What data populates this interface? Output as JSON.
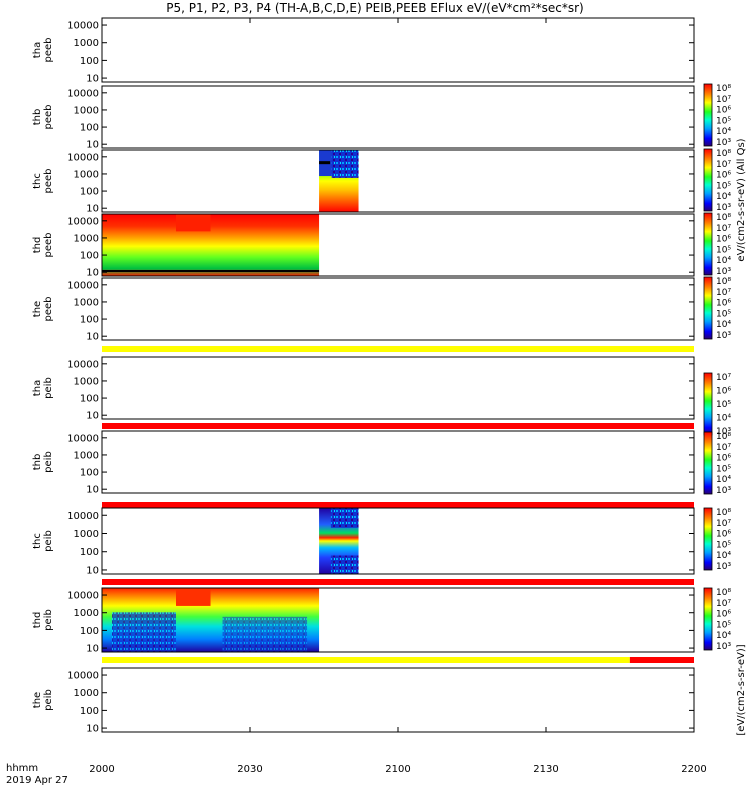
{
  "title": "P5, P1, P2, P3, P4 (TH-A,B,C,D,E) PEIB,PEEB EFlux eV/(eV*cm²*sec*sr)",
  "time_label": "hhmm",
  "date_label": "2019 Apr 27",
  "x_ticks": [
    "2000",
    "2030",
    "2100",
    "2130",
    "2200"
  ],
  "cbar_label_top": "eV/(cm2-s-sr-eV) (All Qs)",
  "cbar_label_bottom": "[eV/(cm2-s-sr-eV)]",
  "chart_data": {
    "type": "heatmap",
    "x_range": [
      "2000",
      "2200"
    ],
    "y_scale": "log",
    "y_ticks": [
      "10",
      "100",
      "1000",
      "10000"
    ],
    "colorscale": "rainbow",
    "panels": [
      {
        "probe": "tha",
        "product": "peeb",
        "data_intervals": []
      },
      {
        "probe": "thb",
        "product": "peeb",
        "data_intervals": []
      },
      {
        "probe": "thc",
        "product": "peeb",
        "data_intervals": [
          [
            "2044",
            "2052"
          ]
        ]
      },
      {
        "probe": "thd",
        "product": "peeb",
        "data_intervals": [
          [
            "2000",
            "2044"
          ]
        ]
      },
      {
        "probe": "the",
        "product": "peeb",
        "data_intervals": []
      },
      {
        "probe": "tha",
        "product": "peib",
        "data_intervals": []
      },
      {
        "probe": "thb",
        "product": "peib",
        "data_intervals": []
      },
      {
        "probe": "thc",
        "product": "peib",
        "data_intervals": [
          [
            "2044",
            "2052"
          ]
        ]
      },
      {
        "probe": "thd",
        "product": "peib",
        "data_intervals": [
          [
            "2000",
            "2044"
          ]
        ]
      },
      {
        "probe": "the",
        "product": "peib",
        "data_intervals": []
      }
    ],
    "colorbars": [
      {
        "ticks": [
          "10³",
          "10⁴",
          "10⁵",
          "10⁶",
          "10⁷",
          "10⁸"
        ]
      },
      {
        "ticks": [
          "10³",
          "10⁴",
          "10⁵",
          "10⁶",
          "10⁷",
          "10⁸"
        ]
      },
      {
        "ticks": [
          "10³",
          "10⁴",
          "10⁵",
          "10⁶",
          "10⁷",
          "10⁸"
        ]
      },
      {
        "ticks": [
          "10³",
          "10⁴",
          "10⁵",
          "10⁶",
          "10⁷",
          "10⁸"
        ]
      },
      {
        "ticks": [
          "10³",
          "10⁴",
          "10⁵",
          "10⁶",
          "10⁷"
        ]
      },
      {
        "ticks": [
          "10³",
          "10⁴",
          "10⁵",
          "10⁶",
          "10⁷",
          "10⁸"
        ]
      },
      {
        "ticks": [
          "10³",
          "10⁴",
          "10⁵",
          "10⁶",
          "10⁷",
          "10⁸"
        ]
      },
      {
        "ticks": [
          "10³",
          "10⁴",
          "10⁵",
          "10⁶",
          "10⁷",
          "10⁸"
        ]
      }
    ]
  }
}
